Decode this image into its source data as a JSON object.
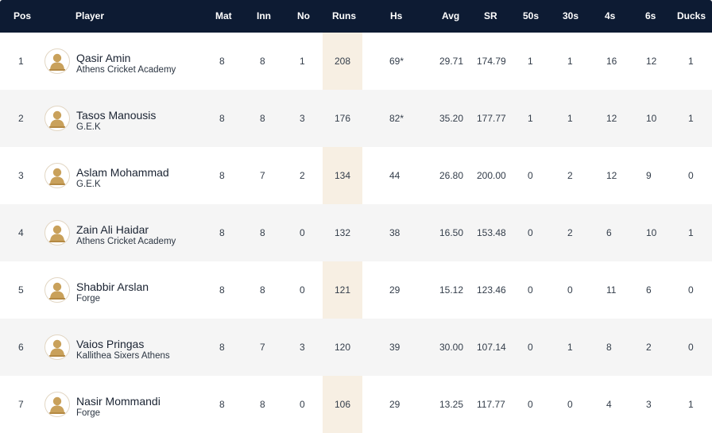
{
  "header": {
    "pos": "Pos",
    "player": "Player",
    "mat": "Mat",
    "inn": "Inn",
    "no": "No",
    "runs": "Runs",
    "hs": "Hs",
    "avg": "Avg",
    "sr": "SR",
    "fifties": "50s",
    "thirties": "30s",
    "fours": "4s",
    "sixes": "6s",
    "ducks": "Ducks"
  },
  "colors": {
    "header_bg": "#0d1b33",
    "runs_highlight": "#f7efe3",
    "alt_row": "#f5f5f5",
    "avatar": "#c9a15b"
  },
  "avatar_icon": "player-silhouette-icon",
  "rows": [
    {
      "pos": "1",
      "name": "Qasir Amin",
      "team": "Athens Cricket Academy",
      "mat": "8",
      "inn": "8",
      "no": "1",
      "runs": "208",
      "hs": "69*",
      "avg": "29.71",
      "sr": "174.79",
      "fifties": "1",
      "thirties": "1",
      "fours": "16",
      "sixes": "12",
      "ducks": "1"
    },
    {
      "pos": "2",
      "name": "Tasos Manousis",
      "team": "G.E.K",
      "mat": "8",
      "inn": "8",
      "no": "3",
      "runs": "176",
      "hs": "82*",
      "avg": "35.20",
      "sr": "177.77",
      "fifties": "1",
      "thirties": "1",
      "fours": "12",
      "sixes": "10",
      "ducks": "1"
    },
    {
      "pos": "3",
      "name": "Aslam Mohammad",
      "team": "G.E.K",
      "mat": "8",
      "inn": "7",
      "no": "2",
      "runs": "134",
      "hs": "44",
      "avg": "26.80",
      "sr": "200.00",
      "fifties": "0",
      "thirties": "2",
      "fours": "12",
      "sixes": "9",
      "ducks": "0"
    },
    {
      "pos": "4",
      "name": "Zain Ali Haidar",
      "team": "Athens Cricket Academy",
      "mat": "8",
      "inn": "8",
      "no": "0",
      "runs": "132",
      "hs": "38",
      "avg": "16.50",
      "sr": "153.48",
      "fifties": "0",
      "thirties": "2",
      "fours": "6",
      "sixes": "10",
      "ducks": "1"
    },
    {
      "pos": "5",
      "name": "Shabbir Arslan",
      "team": "Forge",
      "mat": "8",
      "inn": "8",
      "no": "0",
      "runs": "121",
      "hs": "29",
      "avg": "15.12",
      "sr": "123.46",
      "fifties": "0",
      "thirties": "0",
      "fours": "11",
      "sixes": "6",
      "ducks": "0"
    },
    {
      "pos": "6",
      "name": "Vaios Pringas",
      "team": "Kallithea Sixers Athens",
      "mat": "8",
      "inn": "7",
      "no": "3",
      "runs": "120",
      "hs": "39",
      "avg": "30.00",
      "sr": "107.14",
      "fifties": "0",
      "thirties": "1",
      "fours": "8",
      "sixes": "2",
      "ducks": "0"
    },
    {
      "pos": "7",
      "name": "Nasir Mommandi",
      "team": "Forge",
      "mat": "8",
      "inn": "8",
      "no": "0",
      "runs": "106",
      "hs": "29",
      "avg": "13.25",
      "sr": "117.77",
      "fifties": "0",
      "thirties": "0",
      "fours": "4",
      "sixes": "3",
      "ducks": "1"
    }
  ]
}
